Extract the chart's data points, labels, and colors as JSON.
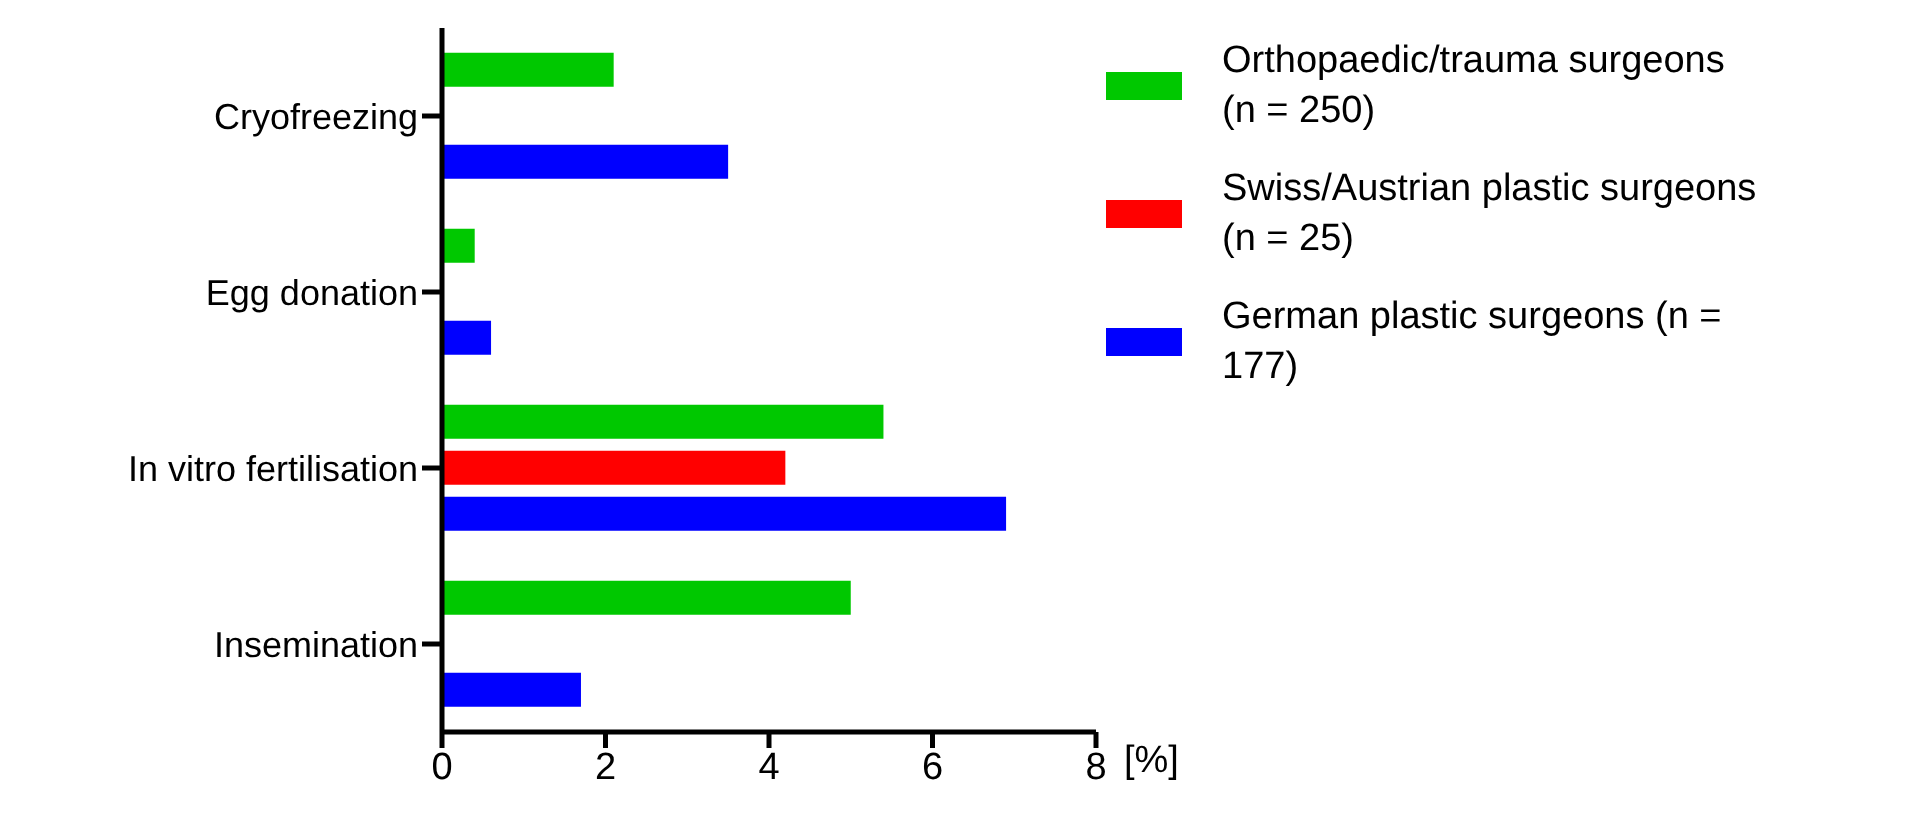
{
  "chart_data": {
    "type": "bar",
    "orientation": "horizontal",
    "xlabel": "[%]",
    "categories": [
      "Cryofreezing",
      "Egg donation",
      "In vitro fertilisation",
      "Insemination"
    ],
    "series": [
      {
        "name": "Orthopaedic/trauma surgeons (n = 250)",
        "color": "#00c800",
        "values": [
          2.1,
          0.4,
          5.4,
          5.0
        ]
      },
      {
        "name": "Swiss/Austrian plastic surgeons (n = 25)",
        "color": "#ff0000",
        "values": [
          0,
          0,
          4.2,
          0
        ]
      },
      {
        "name": "German plastic surgeons (n = 177)",
        "color": "#0000ff",
        "values": [
          3.5,
          0.6,
          6.9,
          1.7
        ]
      }
    ],
    "xlim": [
      0,
      8
    ],
    "xticks": [
      0,
      2,
      4,
      6,
      8
    ],
    "grid": false,
    "legend": "right"
  }
}
